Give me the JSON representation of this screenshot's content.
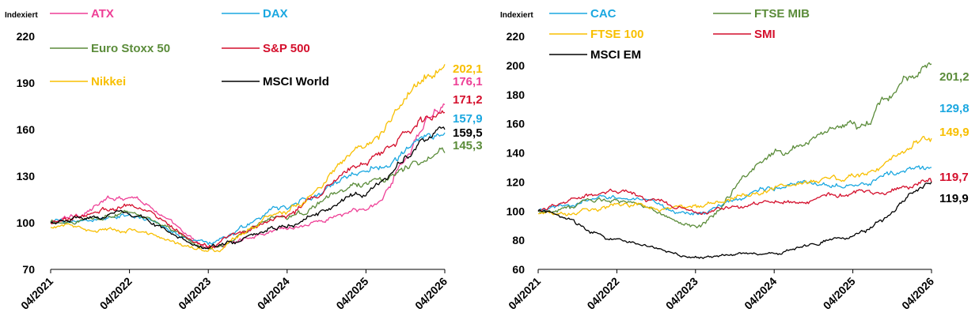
{
  "chart_data": [
    {
      "type": "line",
      "ylabel": "Indexiert",
      "ylim": [
        70,
        220
      ],
      "yticks": [
        "70",
        "100",
        "130",
        "160",
        "190",
        "220"
      ],
      "x_categories": [
        "04/2021",
        "04/2022",
        "04/2023",
        "04/2024",
        "04/2025",
        "04/2026"
      ],
      "grid": false,
      "legend_position": "top",
      "series": [
        {
          "name": "ATX",
          "color": "#ee3f96",
          "end_label": "176,1",
          "values": [
            100,
            118,
            84,
            97,
            108,
            176
          ]
        },
        {
          "name": "DAX",
          "color": "#1aa7e0",
          "end_label": "157,9",
          "values": [
            100,
            104,
            87,
            110,
            134,
            158
          ]
        },
        {
          "name": "Euro Stoxx 50",
          "color": "#5b8c3a",
          "end_label": "145,3",
          "values": [
            100,
            107,
            84,
            105,
            126,
            145
          ]
        },
        {
          "name": "S&P 500",
          "color": "#d40f2c",
          "end_label": "171,2",
          "values": [
            100,
            112,
            85,
            105,
            140,
            171
          ]
        },
        {
          "name": "Nikkei",
          "color": "#f8bf00",
          "end_label": "202,1",
          "values": [
            97,
            95,
            82,
            108,
            150,
            202
          ]
        },
        {
          "name": "MSCI World",
          "color": "#000000",
          "end_label": "159,5",
          "values": [
            100,
            106,
            83,
            98,
            120,
            160
          ]
        }
      ]
    },
    {
      "type": "line",
      "ylabel": "Indexiert",
      "ylim": [
        60,
        220
      ],
      "yticks": [
        "60",
        "80",
        "100",
        "120",
        "140",
        "160",
        "180",
        "200",
        "220"
      ],
      "x_categories": [
        "04/2021",
        "04/2022",
        "04/2023",
        "04/2024",
        "04/2025",
        "04/2026"
      ],
      "grid": false,
      "legend_position": "top",
      "series": [
        {
          "name": "CAC",
          "color": "#1aa7e0",
          "end_label": "129,8",
          "values": [
            100,
            110,
            98,
            117,
            120,
            130
          ]
        },
        {
          "name": "FTSE MIB",
          "color": "#5b8c3a",
          "end_label": "201,2",
          "values": [
            100,
            108,
            90,
            140,
            160,
            201
          ]
        },
        {
          "name": "FTSE 100",
          "color": "#f8bf00",
          "end_label": "149,9",
          "values": [
            98,
            104,
            102,
            115,
            124,
            150
          ]
        },
        {
          "name": "SMI",
          "color": "#d40f2c",
          "end_label": "119,7",
          "values": [
            100,
            114,
            100,
            106,
            110,
            120
          ]
        },
        {
          "name": "MSCI EM",
          "color": "#000000",
          "end_label": "119,9",
          "values": [
            100,
            80,
            68,
            72,
            82,
            120
          ]
        }
      ]
    }
  ]
}
